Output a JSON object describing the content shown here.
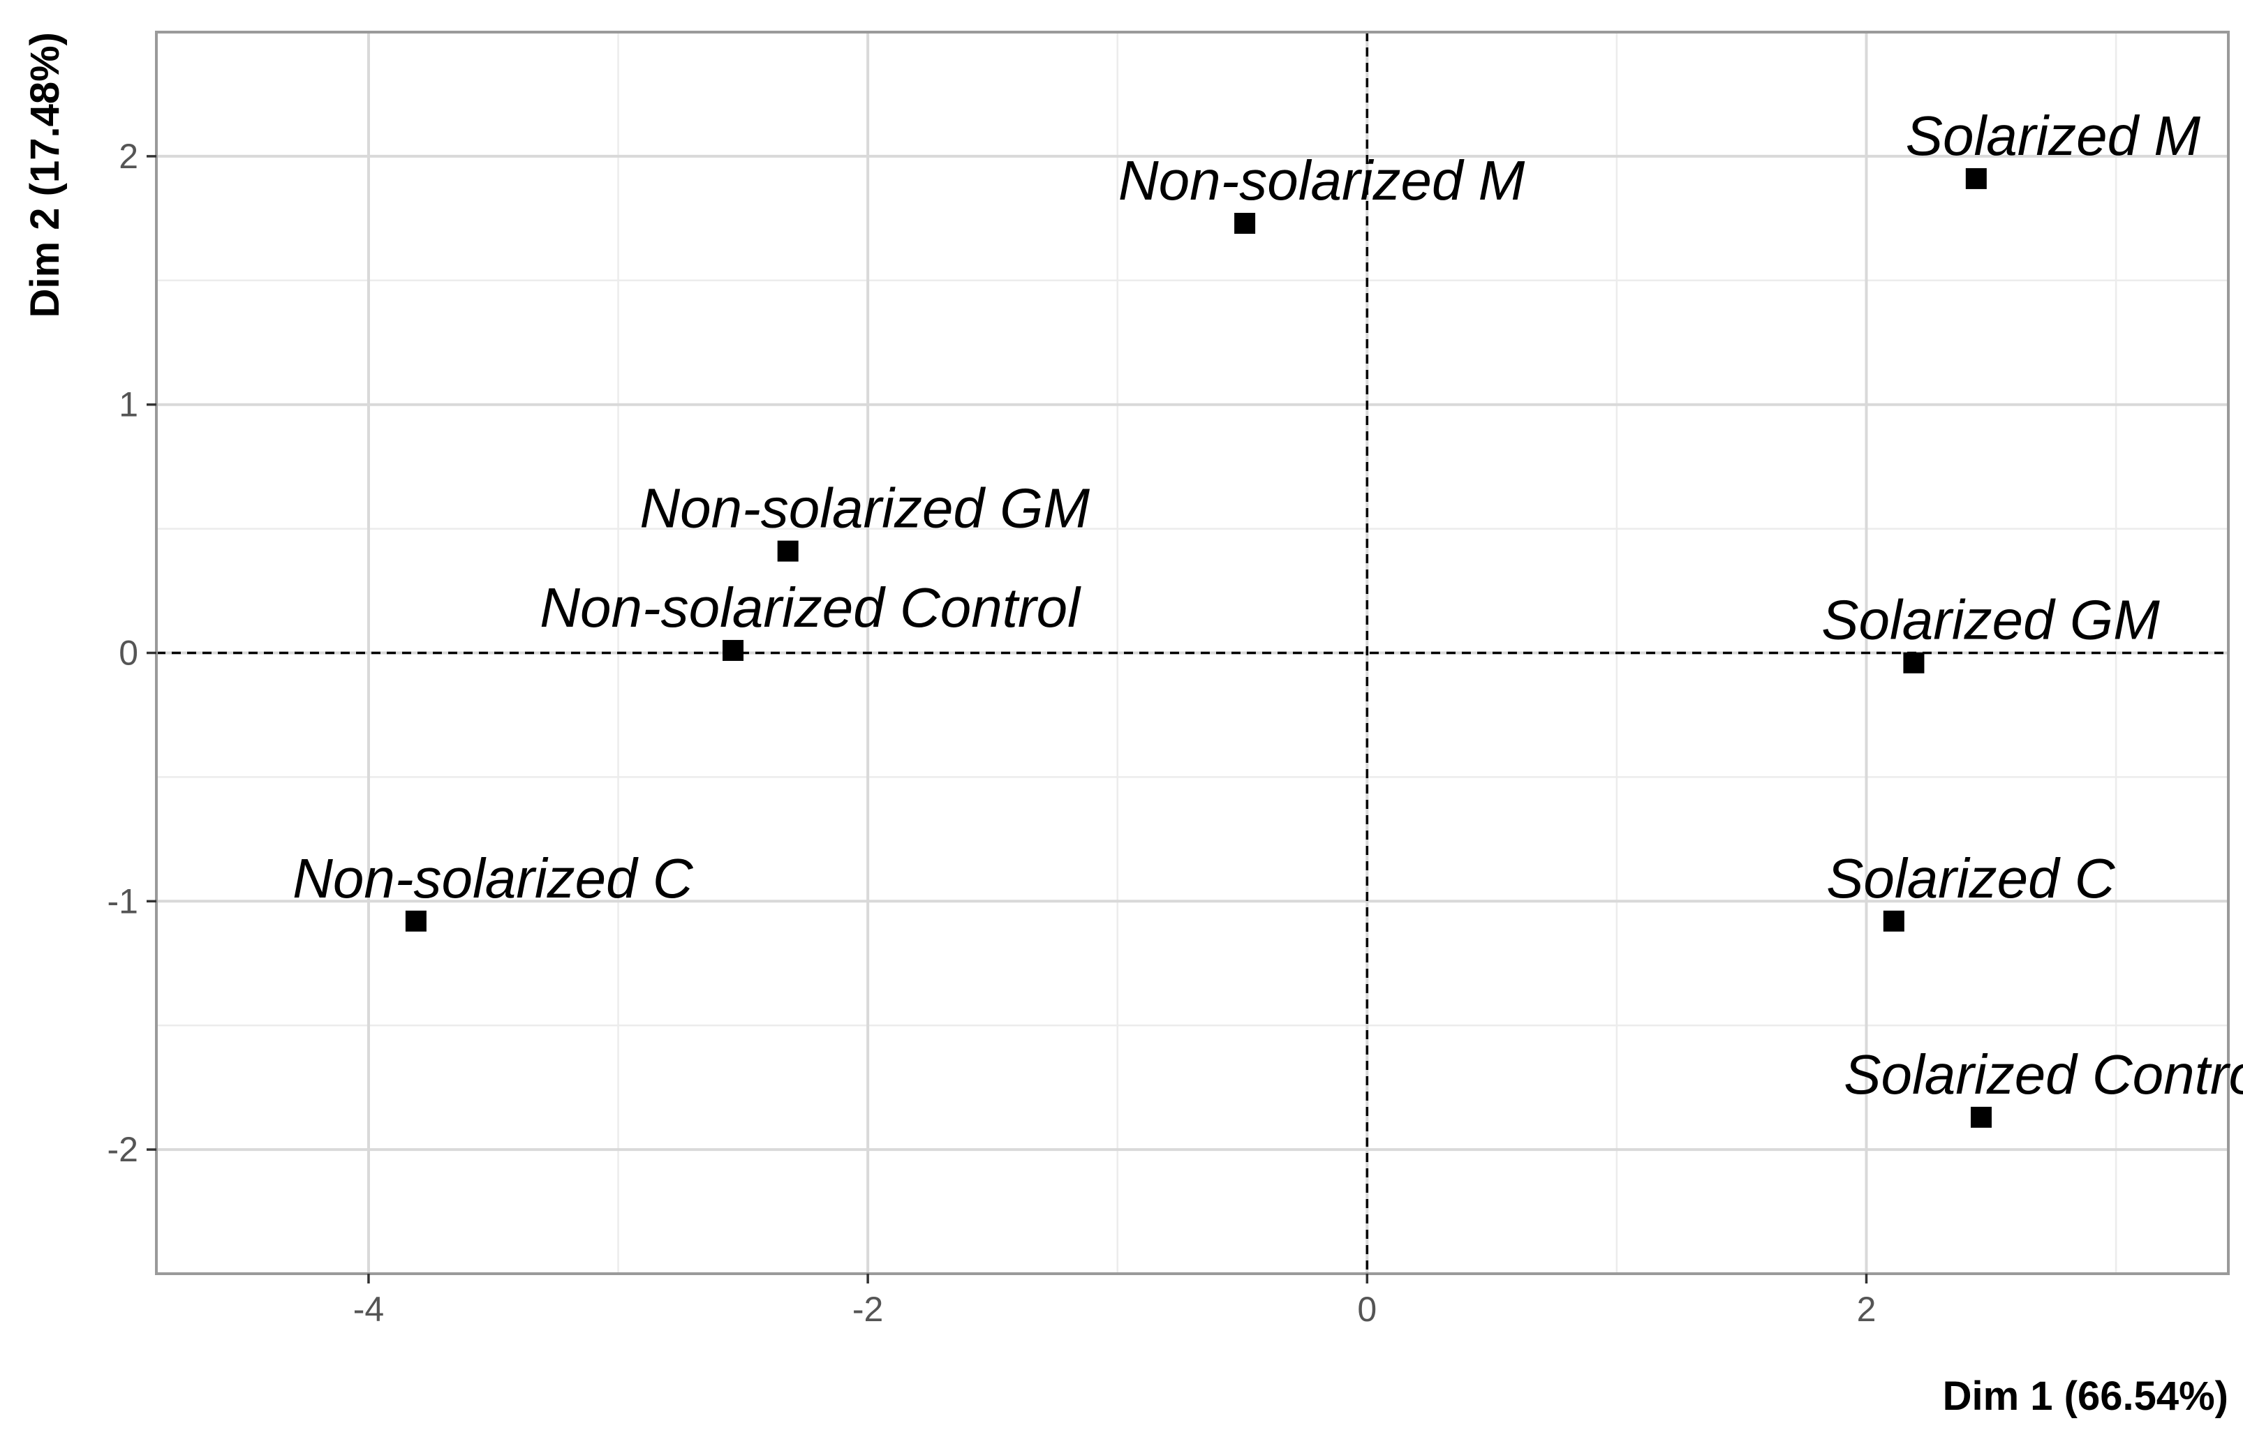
{
  "chart_data": {
    "type": "scatter",
    "title": "",
    "xlabel": "Dim 1 (66.54%)",
    "ylabel": "Dim 2 (17.48%)",
    "xlim": [
      -4.85,
      3.45
    ],
    "ylim": [
      -2.5,
      2.5
    ],
    "x_ticks": [
      -4,
      -2,
      0,
      2
    ],
    "y_ticks": [
      -2,
      -1,
      0,
      1,
      2
    ],
    "x_tick_labels": [
      "-4",
      "-2",
      "0",
      "2"
    ],
    "y_tick_labels": [
      "-2",
      "-1",
      "0",
      "1",
      "2"
    ],
    "grid": true,
    "reference_lines": {
      "x": 0,
      "y": 0,
      "style": "dashed"
    },
    "points": [
      {
        "label": "Solarized M",
        "x": 2.44,
        "y": 1.91
      },
      {
        "label": "Non-solarized M",
        "x": -0.49,
        "y": 1.73
      },
      {
        "label": "Non-solarized GM",
        "x": -2.32,
        "y": 0.41
      },
      {
        "label": "Non-solarized Control",
        "x": -2.54,
        "y": 0.01
      },
      {
        "label": "Solarized GM",
        "x": 2.19,
        "y": -0.04
      },
      {
        "label": "Non-solarized C",
        "x": -3.81,
        "y": -1.08
      },
      {
        "label": "Solarized C",
        "x": 2.11,
        "y": -1.08
      },
      {
        "label": "Solarized Control",
        "x": 2.46,
        "y": -1.87
      }
    ],
    "marker_color": "#000000"
  }
}
